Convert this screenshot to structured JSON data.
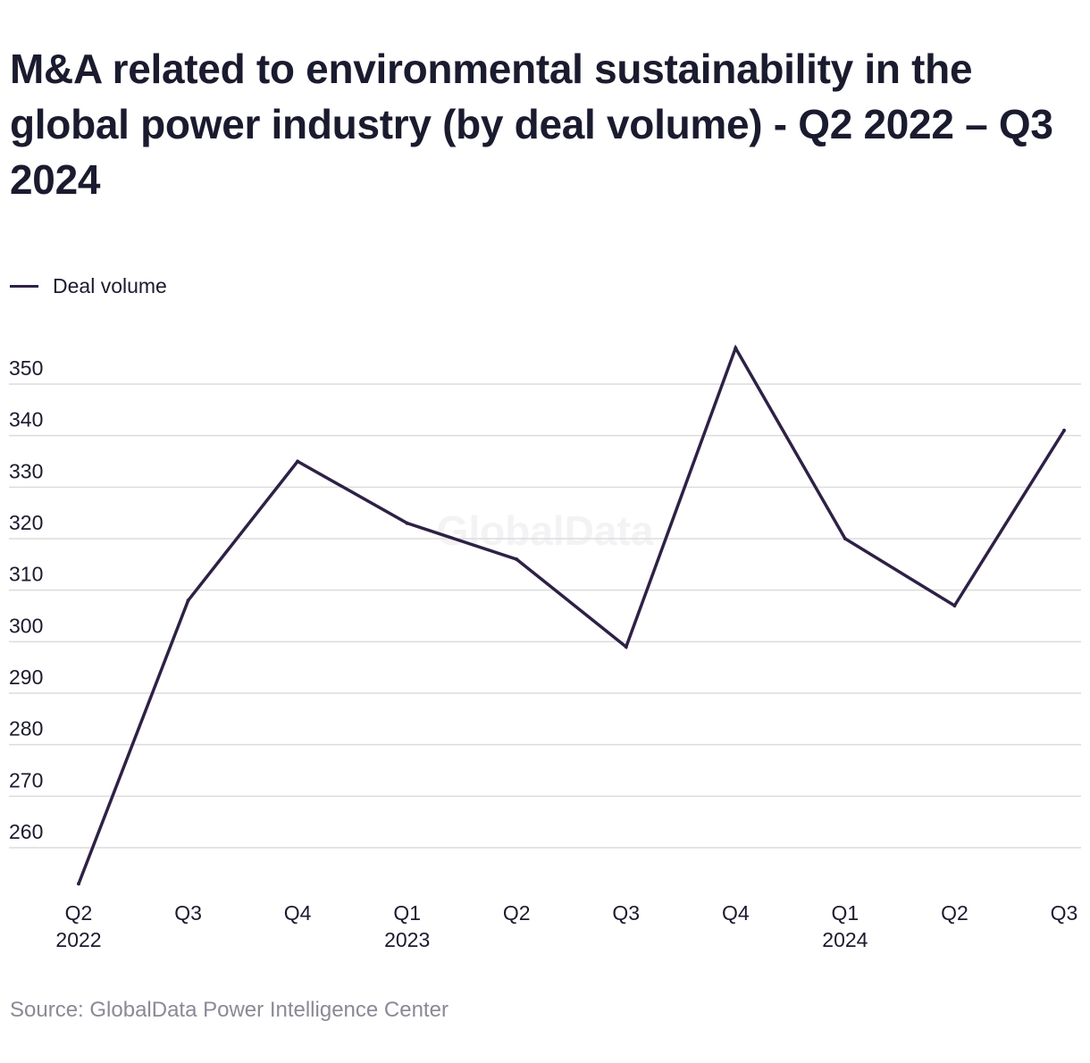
{
  "title": "M&A related to environmental sustainability in the global power industry (by deal volume) - Q2 2022 – Q3 2024",
  "legend": {
    "label": "Deal volume"
  },
  "watermark": "GlobalData",
  "source": "Source: GlobalData Power Intelligence Center",
  "colors": {
    "line": "#2e2145",
    "grid": "#dcdcdc",
    "text": "#1b1b2f",
    "source": "#8a8a96"
  },
  "chart_data": {
    "type": "line",
    "title": "M&A related to environmental sustainability in the global power industry (by deal volume) - Q2 2022 – Q3 2024",
    "xlabel": "",
    "ylabel": "",
    "categories": [
      "Q2",
      "Q3",
      "Q4",
      "Q1",
      "Q2",
      "Q3",
      "Q4",
      "Q1",
      "Q2",
      "Q3"
    ],
    "category_years": [
      "2022",
      "",
      "",
      "2023",
      "",
      "",
      "",
      "2024",
      "",
      ""
    ],
    "series": [
      {
        "name": "Deal volume",
        "values": [
          253,
          308,
          335,
          323,
          316,
          299,
          357,
          320,
          307,
          341
        ]
      }
    ],
    "yticks": [
      260,
      270,
      280,
      290,
      300,
      310,
      320,
      330,
      340,
      350
    ],
    "ylim": [
      251,
      360
    ],
    "grid": true,
    "legend_position": "top-left"
  }
}
